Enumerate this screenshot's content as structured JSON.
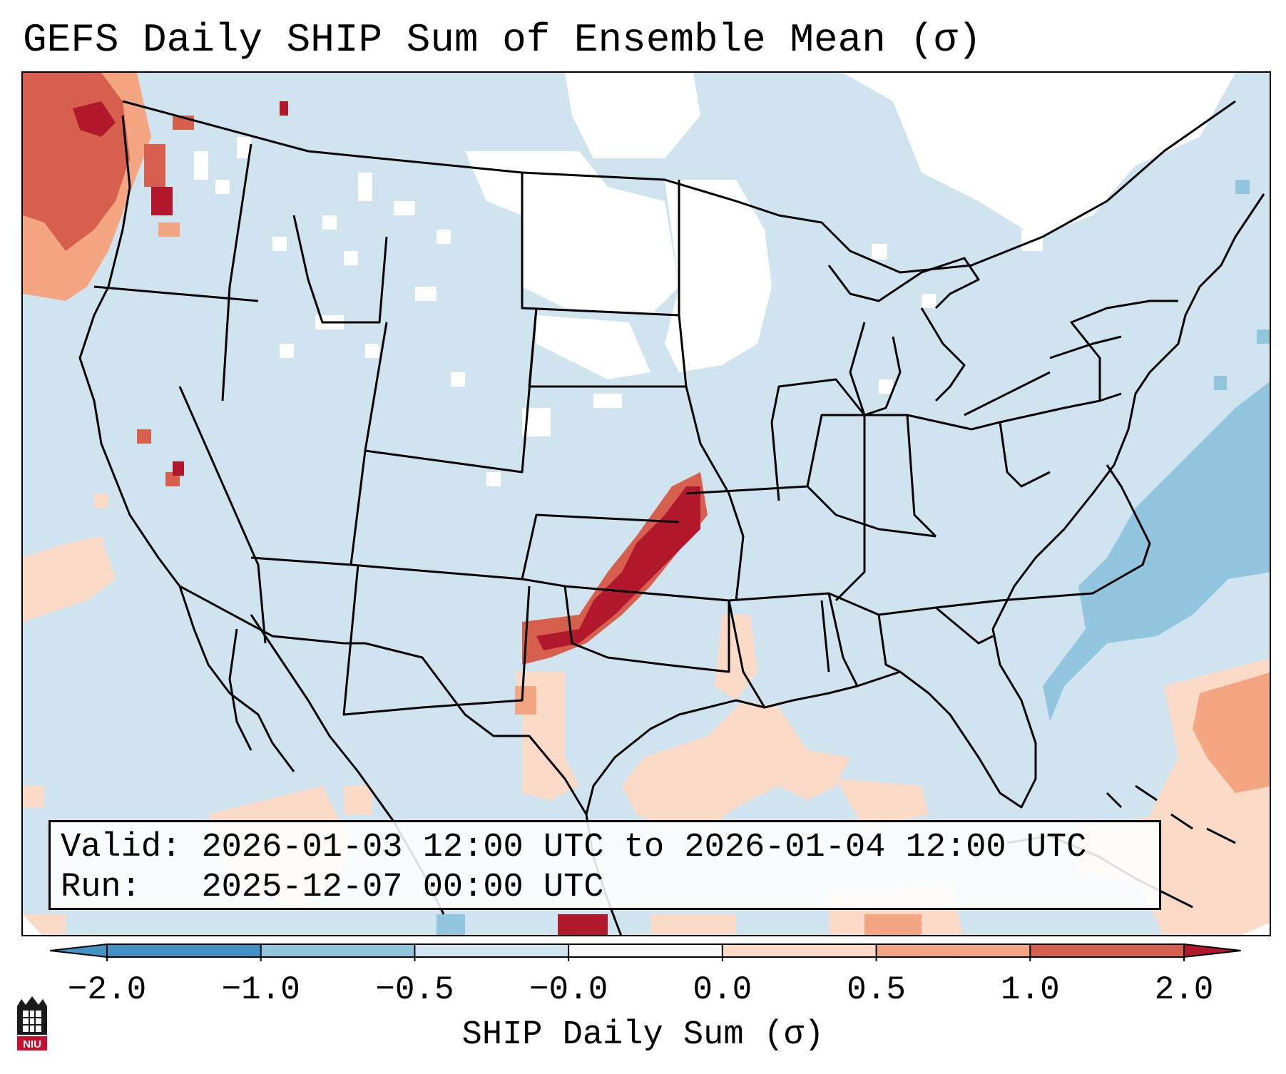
{
  "title": "GEFS Daily SHIP Sum of Ensemble Mean (σ)",
  "info": {
    "valid_label": "Valid:",
    "valid_value": "2026-01-03 12:00 UTC to 2026-01-04 12:00 UTC",
    "run_label": "Run:  ",
    "run_value": "2025-12-07 00:00 UTC"
  },
  "colorbar": {
    "label": "SHIP Daily Sum (σ)",
    "ticks": [
      "−2.0",
      "−1.0",
      "−0.5",
      "−0.0",
      "0.0",
      "0.5",
      "1.0",
      "2.0"
    ],
    "colors": [
      "#4392c5",
      "#92c5de",
      "#d1e5f0",
      "#f7f7f7",
      "#fbdbc7",
      "#f4a582",
      "#d6604d",
      "#b2182b"
    ]
  },
  "logo": {
    "text": "NIU"
  },
  "map_colors": {
    "ocean_fill": "#d0e4f0",
    "no_data": "#ffffff",
    "strong_negative": "#92c5de",
    "weak_positive": "#fbdbc7",
    "moderate_positive": "#f4a582",
    "high_positive": "#d6604d",
    "max_positive": "#b2182b"
  }
}
